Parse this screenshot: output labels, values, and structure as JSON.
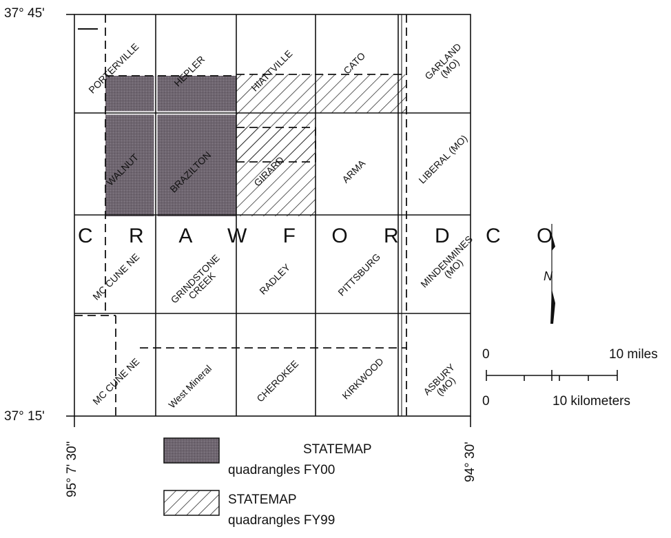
{
  "map": {
    "coords": {
      "lat_top": "37° 45'",
      "lat_bottom": "37° 15'",
      "lon_left": "95° 7' 30\"",
      "lon_right": "94° 30'"
    },
    "county_name": "C R A W F O R D   C O",
    "quadrangles": [
      {
        "name": "PORTERVILLE",
        "status": "none"
      },
      {
        "name": "HEPLER",
        "status": "FY00"
      },
      {
        "name": "HIATTVILLE",
        "status": "FY99"
      },
      {
        "name": "CATO",
        "status": "FY99"
      },
      {
        "name": "GARLAND (MO)",
        "status": "none"
      },
      {
        "name": "WALNUT",
        "status": "FY00"
      },
      {
        "name": "BRAZILTON",
        "status": "FY00"
      },
      {
        "name": "GIRARD",
        "status": "FY99"
      },
      {
        "name": "ARMA",
        "status": "none"
      },
      {
        "name": "LIBERAL (MO)",
        "status": "none"
      },
      {
        "name": "MC CUNE NE",
        "status": "none"
      },
      {
        "name": "GRINDSTONE CREEK",
        "status": "none"
      },
      {
        "name": "RADLEY",
        "status": "none"
      },
      {
        "name": "PITTSBURG",
        "status": "none"
      },
      {
        "name": "MINDENMINES (MO)",
        "status": "none"
      },
      {
        "name": "MC CUNE NE",
        "status": "none"
      },
      {
        "name": "West Mineral",
        "status": "none"
      },
      {
        "name": "CHEROKEE",
        "status": "none"
      },
      {
        "name": "KIRKWOOD",
        "status": "none"
      },
      {
        "name": "ASBURY (MO)",
        "status": "none"
      }
    ],
    "north_label": "N",
    "scale": {
      "miles_zero": "0",
      "miles_label": "10 miles",
      "km_zero": "0",
      "km_label": "10 kilometers"
    },
    "legend": [
      {
        "title": "STATEMAP",
        "subtitle": "quadrangles FY00",
        "pattern": "shaded"
      },
      {
        "title": "STATEMAP",
        "subtitle": "quadrangles FY99",
        "pattern": "hatched"
      }
    ],
    "colors": {
      "fy00_fill": "#6f6670",
      "ink": "#111111"
    }
  }
}
